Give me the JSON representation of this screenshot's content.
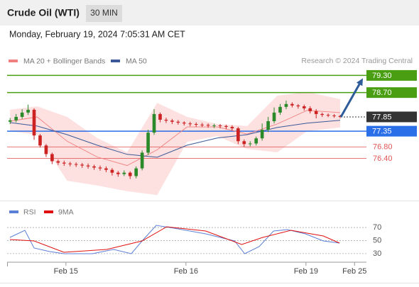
{
  "header": {
    "title": "Crude Oil (WTI)",
    "interval": "30 MIN",
    "datetime": "Monday, February 19, 2024 7:05:31 AM CET"
  },
  "chart_data": [
    {
      "type": "candlestick",
      "credit": "Research © 2024 Trading Central",
      "up_color": "#2a8a2a",
      "down_color": "#cc2222",
      "xlim": [
        0,
        59.88
      ],
      "ylim": [
        75.0,
        80.45
      ],
      "xticks": [
        {
          "value": 9.8,
          "label": "Feb 15"
        },
        {
          "value": 29.8,
          "label": "Feb 16"
        },
        {
          "value": 49.8,
          "label": "Feb 19"
        },
        {
          "value": 57.9,
          "label": "Feb 25"
        }
      ],
      "open": [
        77.68,
        77.73,
        77.85,
        78.0,
        78.1,
        77.2,
        76.85,
        76.55,
        76.3,
        76.25,
        76.22,
        76.2,
        76.18,
        76.15,
        76.12,
        76.08,
        76.05,
        76.0,
        75.9,
        75.85,
        75.9,
        75.78,
        76.05,
        76.6,
        77.3,
        77.95,
        77.75,
        77.72,
        77.68,
        77.65,
        77.62,
        77.6,
        77.58,
        77.57,
        77.55,
        77.55,
        77.53,
        77.5,
        77.45,
        77.0,
        76.9,
        76.92,
        77.1,
        77.4,
        77.7,
        78.0,
        78.2,
        78.3,
        78.25,
        78.22,
        78.15,
        78.05,
        77.95,
        77.92,
        77.9,
        77.88
      ],
      "high": [
        77.81,
        77.95,
        78.12,
        78.28,
        78.15,
        77.25,
        76.9,
        76.6,
        76.36,
        76.32,
        76.28,
        76.26,
        76.24,
        76.22,
        76.18,
        76.15,
        76.12,
        76.06,
        75.96,
        75.98,
        75.95,
        76.12,
        76.68,
        77.4,
        78.12,
        78.0,
        77.82,
        77.78,
        77.74,
        77.7,
        77.68,
        77.66,
        77.64,
        77.62,
        77.61,
        77.6,
        77.58,
        77.56,
        77.5,
        77.06,
        77.0,
        77.16,
        77.62,
        77.85,
        78.18,
        78.3,
        78.42,
        78.36,
        78.3,
        78.28,
        78.22,
        78.12,
        78.0,
        77.97,
        77.95,
        77.92
      ],
      "low": [
        77.6,
        77.66,
        77.78,
        77.92,
        77.05,
        76.78,
        76.45,
        76.2,
        76.17,
        76.14,
        76.12,
        76.1,
        76.07,
        76.04,
        76.0,
        75.97,
        75.92,
        75.8,
        75.76,
        75.78,
        75.68,
        75.7,
        75.98,
        76.52,
        77.22,
        77.66,
        77.64,
        77.6,
        77.58,
        77.55,
        77.52,
        77.5,
        77.49,
        77.47,
        77.46,
        77.45,
        77.42,
        77.38,
        76.9,
        76.8,
        76.82,
        76.85,
        77.02,
        77.32,
        77.62,
        77.92,
        78.12,
        78.18,
        78.14,
        78.07,
        77.97,
        77.8,
        77.85,
        77.84,
        77.82,
        77.8
      ],
      "close": [
        77.73,
        77.85,
        78.0,
        78.1,
        77.2,
        76.85,
        76.55,
        76.3,
        76.25,
        76.22,
        76.2,
        76.18,
        76.15,
        76.12,
        76.08,
        76.05,
        76.0,
        75.9,
        75.85,
        75.9,
        75.78,
        76.05,
        76.6,
        77.3,
        77.95,
        77.75,
        77.72,
        77.68,
        77.65,
        77.62,
        77.6,
        77.58,
        77.57,
        77.55,
        77.55,
        77.53,
        77.5,
        77.45,
        77.0,
        76.9,
        76.92,
        77.1,
        77.4,
        77.7,
        78.0,
        78.2,
        78.3,
        78.25,
        78.22,
        78.15,
        78.05,
        77.95,
        77.92,
        77.9,
        77.88,
        77.85
      ],
      "bands": {
        "color": "#fde0e0",
        "x": [
          0.5,
          5,
          10,
          15,
          20,
          25,
          30,
          35,
          40,
          45,
          50,
          55.5
        ],
        "upper": [
          78.1,
          78.22,
          77.85,
          77.11,
          76.61,
          78.34,
          77.85,
          77.6,
          77.53,
          78.59,
          78.72,
          78.47
        ],
        "lower": [
          77.35,
          77.23,
          75.62,
          75.45,
          75.25,
          75.12,
          76.98,
          77.18,
          76.73,
          76.61,
          77.35,
          77.48
        ]
      },
      "series": [
        {
          "name": "MA 20 + Bollinger Bands",
          "color": "#f08080",
          "x": [
            0.5,
            5,
            10,
            15,
            20,
            25,
            30,
            35,
            40,
            45,
            50,
            55.5
          ],
          "values": [
            77.7,
            77.85,
            77.0,
            76.45,
            76.15,
            76.7,
            77.5,
            77.5,
            77.25,
            77.6,
            78.08,
            78.0
          ]
        },
        {
          "name": "MA 50",
          "color": "#3b5998",
          "x": [
            0.5,
            5,
            10,
            15,
            20,
            25,
            30,
            35,
            40,
            45,
            50,
            55.5
          ],
          "values": [
            77.65,
            77.53,
            77.23,
            76.86,
            76.54,
            76.44,
            76.86,
            77.11,
            77.23,
            77.48,
            77.63,
            77.73
          ]
        }
      ],
      "levels": [
        {
          "value": 79.3,
          "label": "79.30",
          "color": "#4a9e12",
          "boxed": true,
          "dashed": false
        },
        {
          "value": 78.7,
          "label": "78.70",
          "color": "#4a9e12",
          "boxed": true,
          "dashed": false
        },
        {
          "value": 77.85,
          "label": "77.85",
          "color": "#333333",
          "boxed": true,
          "dashed": true
        },
        {
          "value": 77.35,
          "label": "77.35",
          "color": "#2a6ee8",
          "boxed": true,
          "dashed": false
        },
        {
          "value": 76.8,
          "label": "76.80",
          "color": "#e05555",
          "boxed": false,
          "dashed": false
        },
        {
          "value": 76.4,
          "label": "76.40",
          "color": "#e05555",
          "boxed": false,
          "dashed": false
        }
      ]
    },
    {
      "type": "line",
      "xlim": [
        0,
        59.88
      ],
      "ylim": [
        19,
        82
      ],
      "yticks": [
        30,
        50,
        70
      ],
      "series": [
        {
          "name": "RSI",
          "color": "#5b7fd6",
          "x": [
            0.47,
            2.96,
            4.5,
            7.1,
            9.47,
            14.2,
            17.75,
            20.7,
            22.5,
            24.85,
            27.8,
            33.1,
            37.9,
            39.6,
            42,
            44.4,
            46.7,
            49.7,
            52.7,
            55.4
          ],
          "values": [
            54.8,
            65.7,
            38.5,
            33.1,
            29.9,
            29.9,
            36.4,
            29.9,
            49.4,
            73.3,
            69,
            60.3,
            49.4,
            29.9,
            40.7,
            64.6,
            66.8,
            60.3,
            49.4,
            46.2
          ]
        },
        {
          "name": "9MA",
          "color": "#e01010",
          "x": [
            0.47,
            4.5,
            9.47,
            16.6,
            22.5,
            26.6,
            33.1,
            39.1,
            42.6,
            47.3,
            52.7,
            55.4
          ],
          "values": [
            51.6,
            49.4,
            32,
            36.4,
            49.4,
            71.1,
            64.6,
            44,
            54.8,
            65.7,
            57,
            46.2
          ]
        }
      ]
    }
  ]
}
